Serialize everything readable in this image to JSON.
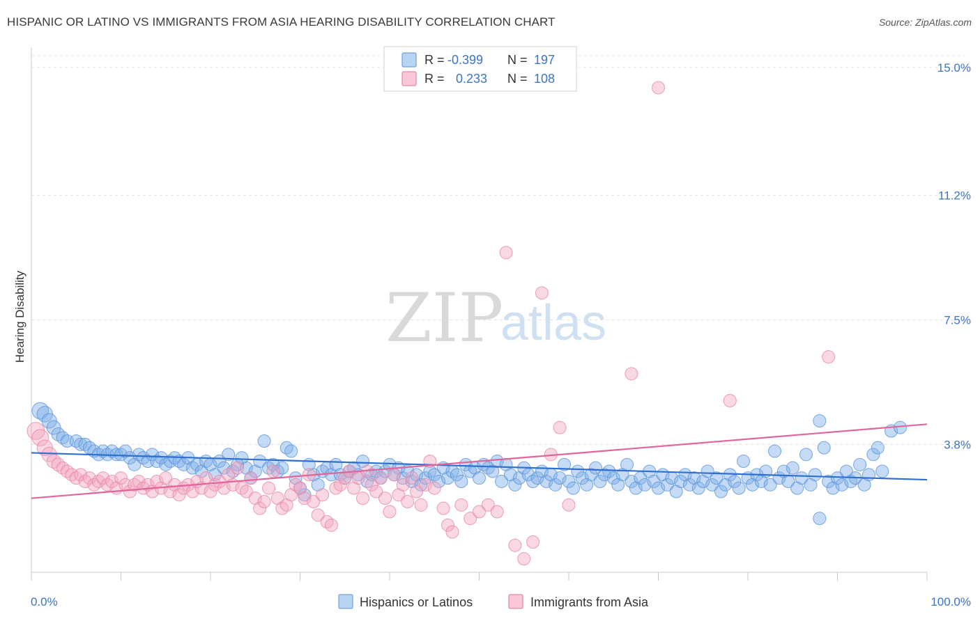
{
  "title": "HISPANIC OR LATINO VS IMMIGRANTS FROM ASIA HEARING DISABILITY CORRELATION CHART",
  "source": "Source: ZipAtlas.com",
  "watermark": {
    "zip": "ZIP",
    "atlas": "atlas"
  },
  "chart_data": {
    "type": "scatter",
    "ylabel": "Hearing Disability",
    "xlim": [
      0,
      100
    ],
    "ylim": [
      0,
      15.6
    ],
    "x_tick_labels": [
      {
        "value": 0,
        "label": "0.0%"
      },
      {
        "value": 100,
        "label": "100.0%"
      }
    ],
    "y_ticks": [
      {
        "value": 3.8,
        "label": "3.8%"
      },
      {
        "value": 7.5,
        "label": "7.5%"
      },
      {
        "value": 11.2,
        "label": "11.2%"
      },
      {
        "value": 15.0,
        "label": "15.0%"
      }
    ],
    "grid": "horizontal-dashed",
    "legend_position": "top-center",
    "legend": [
      {
        "r_label": "R =",
        "r_value": "-0.399",
        "n_label": "N =",
        "n_value": "197",
        "color": "#7fb0e8"
      },
      {
        "r_label": "R =",
        "r_value": "0.233",
        "n_label": "N =",
        "n_value": "108",
        "color": "#f2a7c0"
      }
    ],
    "series": [
      {
        "name": "Hispanics or Latinos",
        "color": "#7fb0e8",
        "stroke": "#5a93d8",
        "trend_color": "#2f6fd0",
        "trend": [
          [
            0,
            3.55
          ],
          [
            100,
            2.75
          ]
        ],
        "points": [
          [
            1,
            4.8
          ],
          [
            1.5,
            4.7
          ],
          [
            2,
            4.5
          ],
          [
            2.5,
            4.3
          ],
          [
            3,
            4.1
          ],
          [
            3.5,
            4.0
          ],
          [
            4,
            3.9
          ],
          [
            5,
            3.9
          ],
          [
            5.5,
            3.8
          ],
          [
            6,
            3.8
          ],
          [
            6.5,
            3.7
          ],
          [
            7,
            3.6
          ],
          [
            7.5,
            3.5
          ],
          [
            8,
            3.6
          ],
          [
            8.5,
            3.5
          ],
          [
            9,
            3.6
          ],
          [
            9.5,
            3.5
          ],
          [
            10,
            3.5
          ],
          [
            10.5,
            3.6
          ],
          [
            11,
            3.4
          ],
          [
            11.5,
            3.2
          ],
          [
            12,
            3.5
          ],
          [
            12.5,
            3.4
          ],
          [
            13,
            3.3
          ],
          [
            13.5,
            3.5
          ],
          [
            14,
            3.3
          ],
          [
            14.5,
            3.4
          ],
          [
            15,
            3.2
          ],
          [
            15.5,
            3.3
          ],
          [
            16,
            3.4
          ],
          [
            16.5,
            3.3
          ],
          [
            17,
            3.2
          ],
          [
            17.5,
            3.4
          ],
          [
            18,
            3.1
          ],
          [
            18.5,
            3.2
          ],
          [
            19,
            3.0
          ],
          [
            19.5,
            3.3
          ],
          [
            20,
            3.2
          ],
          [
            20.5,
            2.9
          ],
          [
            21,
            3.3
          ],
          [
            21.5,
            3.1
          ],
          [
            22,
            3.5
          ],
          [
            22.5,
            3.0
          ],
          [
            23,
            3.2
          ],
          [
            23.5,
            3.4
          ],
          [
            24,
            3.1
          ],
          [
            24.5,
            2.8
          ],
          [
            25,
            3.0
          ],
          [
            25.5,
            3.3
          ],
          [
            26,
            3.9
          ],
          [
            26.5,
            3.1
          ],
          [
            27,
            3.2
          ],
          [
            27.5,
            3.0
          ],
          [
            28,
            3.1
          ],
          [
            28.5,
            3.7
          ],
          [
            29,
            3.6
          ],
          [
            29.5,
            2.8
          ],
          [
            30,
            2.5
          ],
          [
            30.5,
            2.3
          ],
          [
            31,
            3.2
          ],
          [
            31.5,
            2.9
          ],
          [
            32,
            2.6
          ],
          [
            32.5,
            3.0
          ],
          [
            33,
            3.1
          ],
          [
            33.5,
            2.9
          ],
          [
            34,
            3.2
          ],
          [
            34.5,
            2.9
          ],
          [
            35,
            2.8
          ],
          [
            35.5,
            3.0
          ],
          [
            36,
            3.1
          ],
          [
            36.5,
            2.9
          ],
          [
            37,
            3.3
          ],
          [
            37.5,
            2.7
          ],
          [
            38,
            2.9
          ],
          [
            38.5,
            3.0
          ],
          [
            39,
            2.8
          ],
          [
            39.5,
            3.0
          ],
          [
            40,
            3.2
          ],
          [
            40.5,
            2.9
          ],
          [
            41,
            3.1
          ],
          [
            41.5,
            2.8
          ],
          [
            42,
            3.0
          ],
          [
            42.5,
            2.7
          ],
          [
            43,
            2.9
          ],
          [
            43.5,
            2.6
          ],
          [
            44,
            2.8
          ],
          [
            44.5,
            3.0
          ],
          [
            45,
            2.9
          ],
          [
            45.5,
            2.7
          ],
          [
            46,
            3.1
          ],
          [
            46.5,
            2.8
          ],
          [
            47,
            3.0
          ],
          [
            47.5,
            2.9
          ],
          [
            48,
            2.7
          ],
          [
            48.5,
            3.2
          ],
          [
            49,
            3.0
          ],
          [
            49.5,
            3.1
          ],
          [
            50,
            2.8
          ],
          [
            50.5,
            3.2
          ],
          [
            51,
            3.1
          ],
          [
            51.5,
            3.0
          ],
          [
            52,
            3.3
          ],
          [
            52.5,
            2.7
          ],
          [
            53,
            3.2
          ],
          [
            53.5,
            2.9
          ],
          [
            54,
            2.6
          ],
          [
            54.5,
            2.8
          ],
          [
            55,
            3.1
          ],
          [
            55.5,
            2.9
          ],
          [
            56,
            2.7
          ],
          [
            56.5,
            2.8
          ],
          [
            57,
            3.0
          ],
          [
            57.5,
            2.7
          ],
          [
            58,
            2.9
          ],
          [
            58.5,
            2.6
          ],
          [
            59,
            2.8
          ],
          [
            59.5,
            3.2
          ],
          [
            60,
            2.7
          ],
          [
            60.5,
            2.5
          ],
          [
            61,
            3.0
          ],
          [
            61.5,
            2.8
          ],
          [
            62,
            2.6
          ],
          [
            62.5,
            2.9
          ],
          [
            63,
            3.1
          ],
          [
            63.5,
            2.7
          ],
          [
            64,
            2.9
          ],
          [
            64.5,
            3.0
          ],
          [
            65,
            2.8
          ],
          [
            65.5,
            2.6
          ],
          [
            66,
            2.9
          ],
          [
            66.5,
            3.2
          ],
          [
            67,
            2.7
          ],
          [
            67.5,
            2.5
          ],
          [
            68,
            2.8
          ],
          [
            68.5,
            2.6
          ],
          [
            69,
            3.0
          ],
          [
            69.5,
            2.7
          ],
          [
            70,
            2.5
          ],
          [
            70.5,
            2.9
          ],
          [
            71,
            2.6
          ],
          [
            71.5,
            2.8
          ],
          [
            72,
            2.4
          ],
          [
            72.5,
            2.7
          ],
          [
            73,
            2.9
          ],
          [
            73.5,
            2.6
          ],
          [
            74,
            2.8
          ],
          [
            74.5,
            2.5
          ],
          [
            75,
            2.7
          ],
          [
            75.5,
            3.0
          ],
          [
            76,
            2.6
          ],
          [
            76.5,
            2.8
          ],
          [
            77,
            2.4
          ],
          [
            77.5,
            2.6
          ],
          [
            78,
            2.9
          ],
          [
            78.5,
            2.7
          ],
          [
            79,
            2.5
          ],
          [
            79.5,
            3.3
          ],
          [
            80,
            2.8
          ],
          [
            80.5,
            2.6
          ],
          [
            81,
            2.9
          ],
          [
            81.5,
            2.7
          ],
          [
            82,
            3.0
          ],
          [
            82.5,
            2.6
          ],
          [
            83,
            3.6
          ],
          [
            83.5,
            2.8
          ],
          [
            84,
            3.0
          ],
          [
            84.5,
            2.7
          ],
          [
            85,
            3.1
          ],
          [
            85.5,
            2.5
          ],
          [
            86,
            2.8
          ],
          [
            86.5,
            3.5
          ],
          [
            87,
            2.6
          ],
          [
            87.5,
            2.9
          ],
          [
            88,
            4.5
          ],
          [
            88.5,
            3.7
          ],
          [
            89,
            2.7
          ],
          [
            89.5,
            2.5
          ],
          [
            90,
            2.8
          ],
          [
            90.5,
            2.6
          ],
          [
            91,
            3.0
          ],
          [
            91.5,
            2.7
          ],
          [
            92,
            2.8
          ],
          [
            92.5,
            3.2
          ],
          [
            93,
            2.6
          ],
          [
            93.5,
            2.9
          ],
          [
            94,
            3.5
          ],
          [
            94.5,
            3.7
          ],
          [
            95,
            3.0
          ],
          [
            96,
            4.2
          ],
          [
            97,
            4.3
          ],
          [
            88,
            1.6
          ]
        ]
      },
      {
        "name": "Immigrants from Asia",
        "color": "#f2a7c0",
        "stroke": "#e886a8",
        "trend_color": "#e0669a",
        "trend": [
          [
            0,
            2.2
          ],
          [
            100,
            4.4
          ]
        ],
        "points": [
          [
            0.5,
            4.2
          ],
          [
            1,
            4.0
          ],
          [
            1.5,
            3.7
          ],
          [
            2,
            3.5
          ],
          [
            2.5,
            3.3
          ],
          [
            3,
            3.2
          ],
          [
            3.5,
            3.1
          ],
          [
            4,
            3.0
          ],
          [
            4.5,
            2.9
          ],
          [
            5,
            2.8
          ],
          [
            5.5,
            2.9
          ],
          [
            6,
            2.7
          ],
          [
            6.5,
            2.8
          ],
          [
            7,
            2.6
          ],
          [
            7.5,
            2.7
          ],
          [
            8,
            2.8
          ],
          [
            8.5,
            2.6
          ],
          [
            9,
            2.7
          ],
          [
            9.5,
            2.5
          ],
          [
            10,
            2.8
          ],
          [
            10.5,
            2.6
          ],
          [
            11,
            2.4
          ],
          [
            11.5,
            2.6
          ],
          [
            12,
            2.7
          ],
          [
            12.5,
            2.5
          ],
          [
            13,
            2.6
          ],
          [
            13.5,
            2.4
          ],
          [
            14,
            2.7
          ],
          [
            14.5,
            2.5
          ],
          [
            15,
            2.8
          ],
          [
            15.5,
            2.4
          ],
          [
            16,
            2.6
          ],
          [
            16.5,
            2.3
          ],
          [
            17,
            2.5
          ],
          [
            17.5,
            2.6
          ],
          [
            18,
            2.4
          ],
          [
            18.5,
            2.7
          ],
          [
            19,
            2.5
          ],
          [
            19.5,
            2.8
          ],
          [
            20,
            2.4
          ],
          [
            20.5,
            2.6
          ],
          [
            21,
            2.7
          ],
          [
            21.5,
            2.5
          ],
          [
            22,
            2.9
          ],
          [
            22.5,
            2.6
          ],
          [
            23,
            3.1
          ],
          [
            23.5,
            2.5
          ],
          [
            24,
            2.4
          ],
          [
            24.5,
            2.8
          ],
          [
            25,
            2.2
          ],
          [
            25.5,
            1.9
          ],
          [
            26,
            2.1
          ],
          [
            26.5,
            2.5
          ],
          [
            27,
            3.0
          ],
          [
            27.5,
            2.2
          ],
          [
            28,
            1.9
          ],
          [
            28.5,
            2.0
          ],
          [
            29,
            2.3
          ],
          [
            29.5,
            2.6
          ],
          [
            30,
            2.5
          ],
          [
            30.5,
            2.2
          ],
          [
            31,
            2.9
          ],
          [
            31.5,
            2.1
          ],
          [
            32,
            1.7
          ],
          [
            32.5,
            2.3
          ],
          [
            33,
            1.5
          ],
          [
            33.5,
            1.4
          ],
          [
            34,
            2.5
          ],
          [
            34.5,
            2.6
          ],
          [
            35,
            2.8
          ],
          [
            35.5,
            3.0
          ],
          [
            36,
            2.5
          ],
          [
            36.5,
            2.8
          ],
          [
            37,
            2.2
          ],
          [
            37.5,
            3.0
          ],
          [
            38,
            2.6
          ],
          [
            38.5,
            2.4
          ],
          [
            39,
            2.8
          ],
          [
            39.5,
            2.2
          ],
          [
            40,
            1.8
          ],
          [
            40.5,
            2.9
          ],
          [
            41,
            2.3
          ],
          [
            41.5,
            2.6
          ],
          [
            42,
            2.1
          ],
          [
            42.5,
            2.8
          ],
          [
            43,
            2.4
          ],
          [
            43.5,
            2.0
          ],
          [
            44,
            2.6
          ],
          [
            44.5,
            3.3
          ],
          [
            45,
            2.5
          ],
          [
            46,
            1.9
          ],
          [
            46.5,
            1.4
          ],
          [
            47,
            1.2
          ],
          [
            48,
            2.0
          ],
          [
            49,
            1.6
          ],
          [
            50,
            1.8
          ],
          [
            51,
            2.0
          ],
          [
            52,
            1.8
          ],
          [
            53,
            9.5
          ],
          [
            54,
            0.8
          ],
          [
            55,
            0.4
          ],
          [
            56,
            0.9
          ],
          [
            57,
            8.3
          ],
          [
            58,
            3.5
          ],
          [
            59,
            4.3
          ],
          [
            60,
            2.0
          ],
          [
            67,
            5.9
          ],
          [
            70,
            14.4
          ],
          [
            78,
            5.1
          ],
          [
            89,
            6.4
          ]
        ]
      }
    ]
  }
}
